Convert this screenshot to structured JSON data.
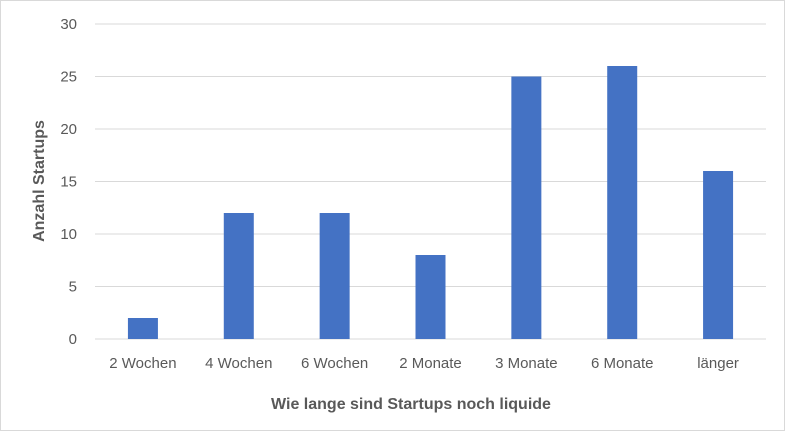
{
  "chart_data": {
    "type": "bar",
    "title": "",
    "xlabel": "Wie lange sind Startups noch liquide",
    "ylabel": "Anzahl Startups",
    "categories": [
      "2 Wochen",
      "4 Wochen",
      "6 Wochen",
      "2 Monate",
      "3 Monate",
      "6 Monate",
      "länger"
    ],
    "values": [
      2,
      12,
      12,
      8,
      25,
      26,
      16
    ],
    "ylim": [
      0,
      30
    ],
    "yticks": [
      0,
      5,
      10,
      15,
      20,
      25,
      30
    ],
    "grid": true,
    "legend": "none",
    "colors": {
      "bar": "#4472c4",
      "grid": "#d9d9d9",
      "text": "#595959"
    }
  }
}
